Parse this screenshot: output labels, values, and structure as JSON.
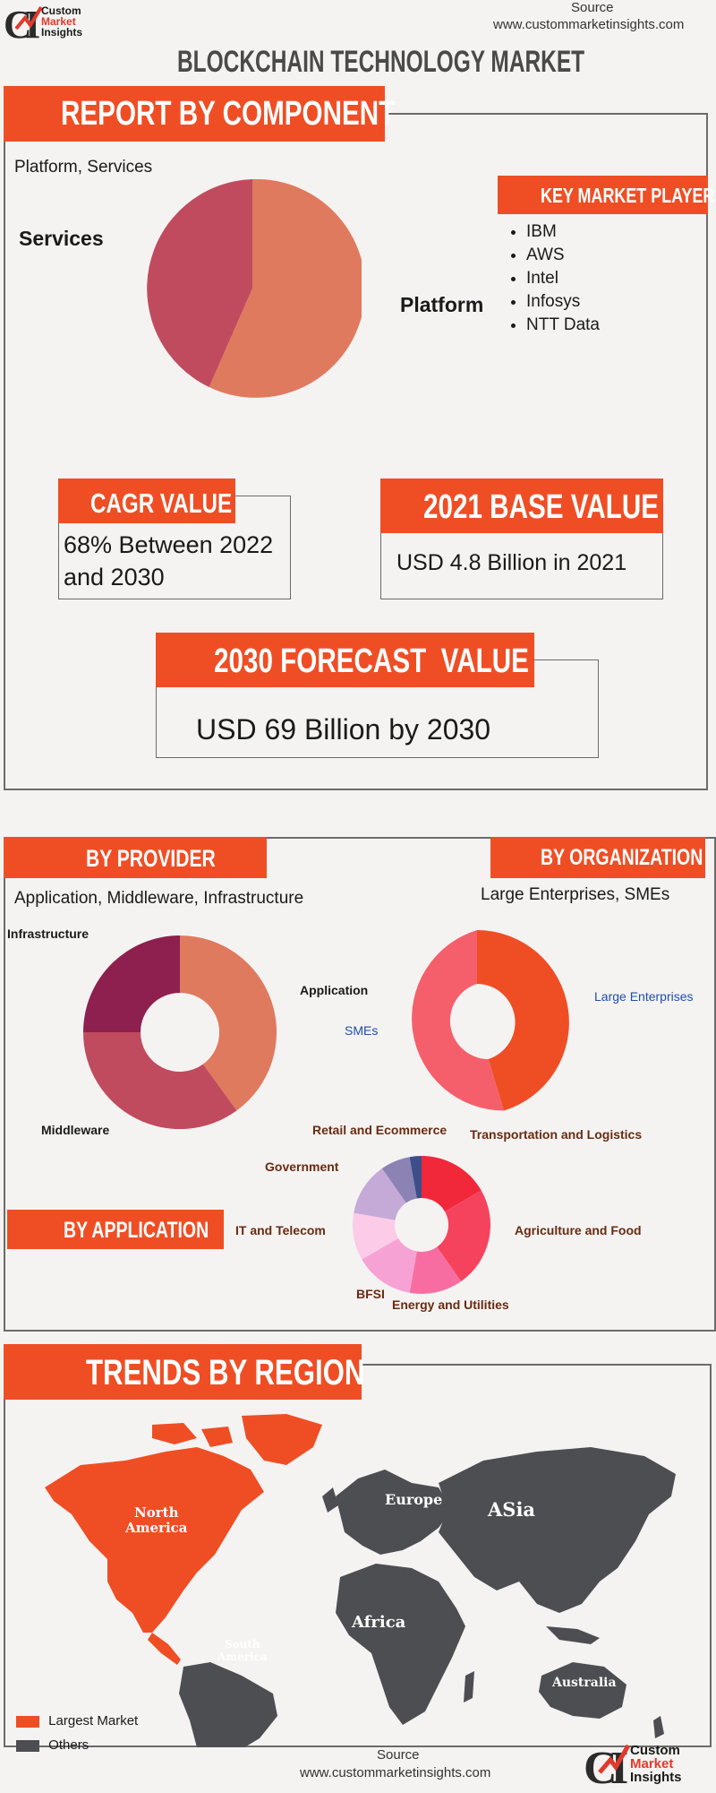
{
  "header": {
    "source_label": "Source",
    "source_url": "www.custommarketinsights.com",
    "logo_text": [
      "Custom",
      "Market",
      "Insights"
    ],
    "title": "BLOCKCHAIN TECHNOLOGY MARKET"
  },
  "component": {
    "heading": "REPORT BY COMPONENT",
    "segments_text": "Platform, Services",
    "label_services": "Services",
    "label_platform": "Platform",
    "colors": {
      "platform": "#e07a5f",
      "services": "#c14b5e"
    }
  },
  "key_players": {
    "heading": "KEY MARKET PLAYERS",
    "items": [
      "IBM",
      "AWS",
      "Intel",
      "Infosys",
      "NTT Data"
    ]
  },
  "cagr": {
    "heading": "CAGR VALUE",
    "value_line1": "68% Between 2022",
    "value_line2": "and 2030"
  },
  "base": {
    "heading": "2021 BASE VALUE",
    "value": "USD 4.8 Billion in 2021"
  },
  "forecast": {
    "heading": "2030 FORECAST  VALUE",
    "value": "USD 69 Billion by 2030"
  },
  "provider": {
    "heading": "BY PROVIDER",
    "segments_text": "Application, Middleware, Infrastructure",
    "labels": {
      "infrastructure": "Infrastructure",
      "application": "Application",
      "middleware": "Middleware"
    }
  },
  "organization": {
    "heading": "BY ORGANIZATION",
    "segments_text": "Large Enterprises, SMEs",
    "labels": {
      "large": "Large Enterprises",
      "smes": "SMEs"
    }
  },
  "application": {
    "heading": "BY APPLICATION",
    "labels": {
      "retail": "Retail and Ecommerce",
      "transport": "Transportation and Logistics",
      "government": "Government",
      "it": "IT and Telecom",
      "agri": "Agriculture and Food",
      "bfsi": "BFSI",
      "energy": "Energy and Utilities"
    }
  },
  "region": {
    "heading": "TRENDS BY REGION",
    "labels": {
      "north_america": [
        "North",
        "America"
      ],
      "south_america": [
        "South",
        "America"
      ],
      "europe": "Europe",
      "asia": "ASia",
      "africa": "Africa",
      "australia": "Australia"
    },
    "legend": {
      "largest": "Largest Market",
      "others": "Others"
    },
    "colors": {
      "largest": "#ef4e25",
      "others": "#4d4e52"
    }
  },
  "footer": {
    "source_label": "Source",
    "source_url": "www.custommarketinsights.com",
    "logo_text": [
      "Custom",
      "Market",
      "Insights"
    ]
  }
}
